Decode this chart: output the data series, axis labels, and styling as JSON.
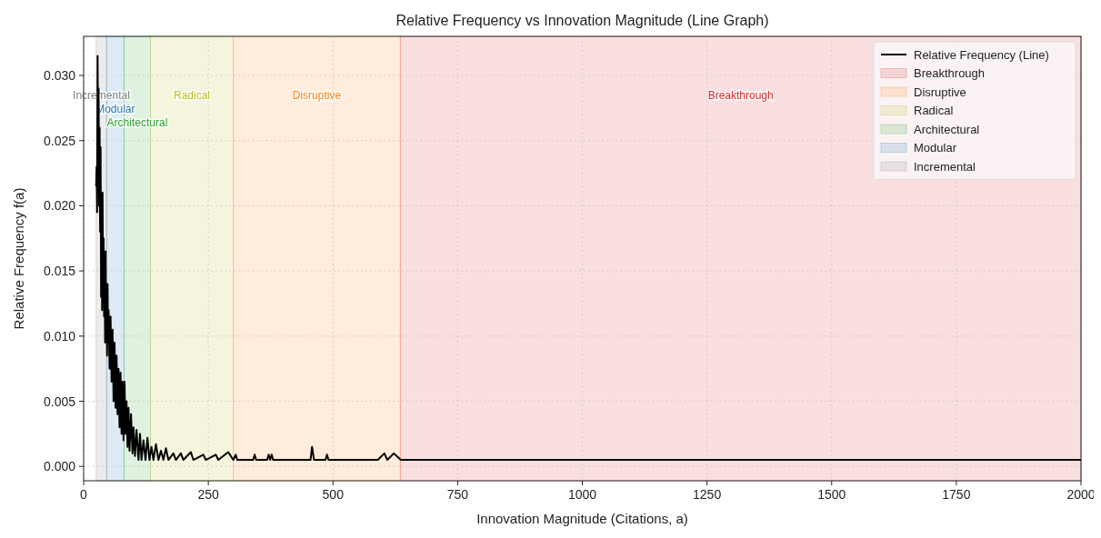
{
  "chart_data": {
    "type": "line",
    "title": "Relative Frequency vs Innovation Magnitude (Line Graph)",
    "xlabel": "Innovation Magnitude (Citations, a)",
    "ylabel": "Relative Frequency f(a)",
    "xlim": [
      0,
      2000
    ],
    "xticks": [
      0,
      250,
      500,
      750,
      1000,
      1250,
      1500,
      1750,
      2000
    ],
    "ylim": [
      -0.0011,
      0.033
    ],
    "yticks": [
      {
        "value": 0,
        "label": "0.000"
      },
      {
        "value": 0.005,
        "label": "0.005"
      },
      {
        "value": 0.01,
        "label": "0.010"
      },
      {
        "value": 0.015,
        "label": "0.015"
      },
      {
        "value": 0.02,
        "label": "0.020"
      },
      {
        "value": 0.025,
        "label": "0.025"
      },
      {
        "value": 0.03,
        "label": "0.030"
      }
    ],
    "grid": true,
    "legend": "top right",
    "line_style": "solid",
    "marker": "none",
    "bands": [
      {
        "axis": "x",
        "from": 25,
        "to": 46,
        "label": "Incremental",
        "color": "#7f7f7f"
      },
      {
        "axis": "x",
        "from": 46,
        "to": 81,
        "label": "Modular",
        "color": "#1f77b4"
      },
      {
        "axis": "x",
        "from": 81,
        "to": 134,
        "label": "Architectural",
        "color": "#2ca02c"
      },
      {
        "axis": "x",
        "from": 134,
        "to": 300,
        "label": "Radical",
        "color": "#bcbd22"
      },
      {
        "axis": "x",
        "from": 300,
        "to": 635,
        "label": "Disruptive",
        "color": "#ff7f0e"
      },
      {
        "axis": "x",
        "from": 635,
        "to": 2000,
        "label": "Breakthrough",
        "color": "#d62728"
      }
    ],
    "series": [
      {
        "name": "Relative Frequency (Line)",
        "color": "#000000",
        "x": [
          25,
          26,
          27,
          28,
          29,
          30,
          31,
          32,
          33,
          34,
          35,
          36,
          37,
          38,
          39,
          40,
          41,
          42,
          43,
          44,
          45,
          46,
          47,
          48,
          49,
          50,
          52,
          54,
          56,
          58,
          60,
          62,
          64,
          66,
          68,
          70,
          72,
          74,
          76,
          78,
          80,
          82,
          84,
          86,
          88,
          90,
          92,
          95,
          98,
          100,
          103,
          106,
          110,
          113,
          116,
          120,
          124,
          128,
          132,
          136,
          140,
          145,
          150,
          155,
          160,
          165,
          170,
          180,
          185,
          195,
          200,
          215,
          220,
          240,
          245,
          265,
          270,
          290,
          300,
          305,
          308,
          340,
          343,
          346,
          368,
          371,
          374,
          377,
          380,
          455,
          458,
          462,
          485,
          488,
          491,
          590,
          603,
          609,
          622,
          636,
          2000
        ],
        "values": [
          0.0215,
          0.023,
          0.0195,
          0.0315,
          0.022,
          0.029,
          0.02,
          0.026,
          0.018,
          0.0245,
          0.013,
          0.0205,
          0.012,
          0.021,
          0.0125,
          0.0175,
          0.0115,
          0.016,
          0.0095,
          0.0165,
          0.0108,
          0.0135,
          0.0085,
          0.014,
          0.0095,
          0.012,
          0.0075,
          0.0115,
          0.0065,
          0.0105,
          0.005,
          0.0095,
          0.0045,
          0.0085,
          0.004,
          0.0075,
          0.003,
          0.0072,
          0.0025,
          0.0065,
          0.002,
          0.0065,
          0.0025,
          0.005,
          0.0015,
          0.0045,
          0.0012,
          0.004,
          0.001,
          0.003,
          0.0008,
          0.0028,
          0.0005,
          0.0025,
          0.0005,
          0.002,
          0.0005,
          0.0022,
          0.0005,
          0.0015,
          0.0005,
          0.0017,
          0.0005,
          0.0012,
          0.0005,
          0.0014,
          0.0005,
          0.001,
          0.0005,
          0.001,
          0.0005,
          0.0011,
          0.0005,
          0.0009,
          0.0005,
          0.0009,
          0.0005,
          0.0011,
          0.0005,
          0.0009,
          0.0005,
          0.0005,
          0.0009,
          0.0005,
          0.0005,
          0.0009,
          0.0005,
          0.0009,
          0.0005,
          0.0005,
          0.0015,
          0.0005,
          0.0005,
          0.0009,
          0.0005,
          0.0005,
          0.001,
          0.0005,
          0.001,
          0.0005,
          0.0005
        ]
      }
    ]
  }
}
